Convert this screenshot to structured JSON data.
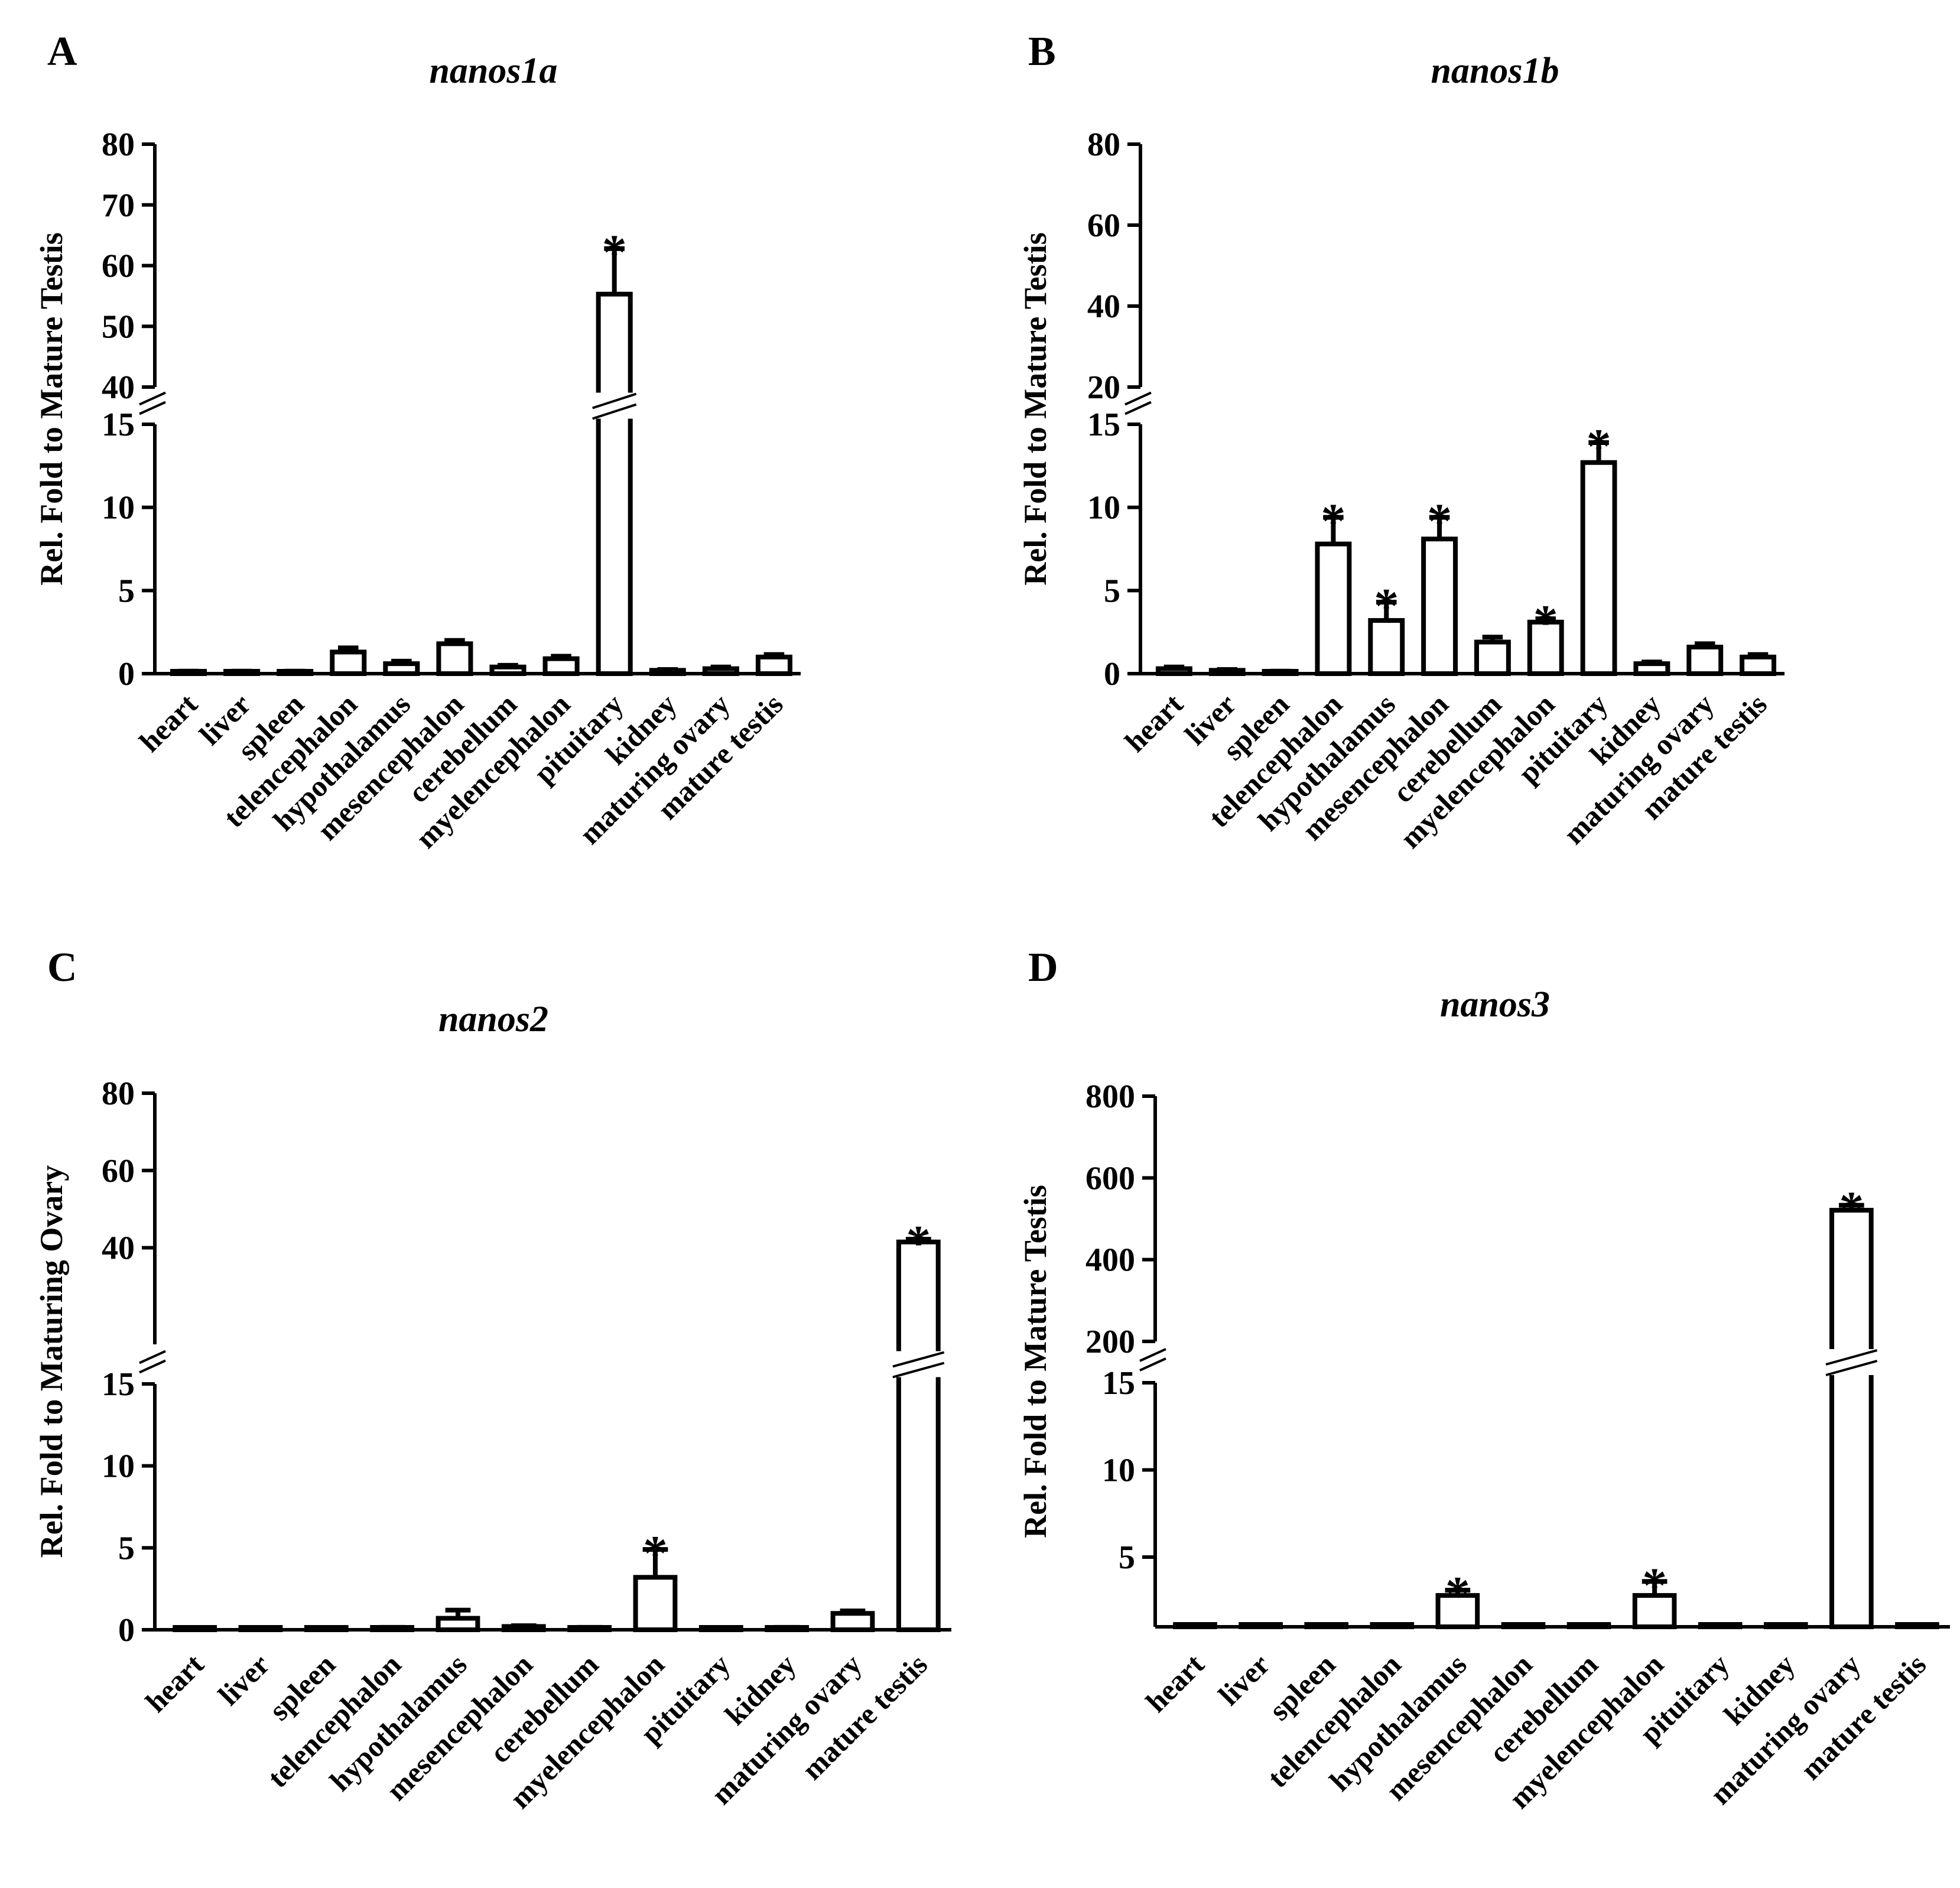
{
  "chart_data": [
    {
      "type": "bar",
      "panel": "A",
      "title": "nanos1a",
      "ylabel": "Rel. Fold to Mature Testis",
      "categories": [
        "heart",
        "liver",
        "spleen",
        "telencephalon",
        "hypothalamus",
        "mesencephalon",
        "cerebellum",
        "myelencephalon",
        "pituitary",
        "kidney",
        "maturing ovary",
        "mature testis"
      ],
      "values": [
        0.1,
        0.1,
        0.1,
        1.3,
        0.6,
        1.8,
        0.4,
        0.9,
        55.3,
        0.2,
        0.3,
        1.0
      ],
      "errors": [
        0.05,
        0.05,
        0.05,
        0.25,
        0.15,
        0.2,
        0.1,
        0.15,
        7.5,
        0.05,
        0.1,
        0.15
      ],
      "significant": [
        "pituitary"
      ],
      "marker": "*",
      "y_axis": {
        "broken": true,
        "lower": {
          "range": [
            0,
            15
          ],
          "ticks": [
            "0",
            "5",
            "10",
            "15"
          ]
        },
        "upper": {
          "range": [
            40,
            80
          ],
          "ticks": [
            "40",
            "50",
            "60",
            "70",
            "80"
          ]
        }
      }
    },
    {
      "type": "bar",
      "panel": "B",
      "title": "nanos1b",
      "ylabel": "Rel. Fold to Mature Testis",
      "categories": [
        "heart",
        "liver",
        "spleen",
        "telencephalon",
        "hypothalamus",
        "mesencephalon",
        "cerebellum",
        "myelencephalon",
        "pituitary",
        "kidney",
        "maturing ovary",
        "mature testis"
      ],
      "values": [
        0.3,
        0.2,
        0.1,
        7.8,
        3.2,
        8.1,
        1.9,
        3.1,
        12.7,
        0.6,
        1.6,
        1.0
      ],
      "errors": [
        0.1,
        0.05,
        0.05,
        1.6,
        1.1,
        1.3,
        0.3,
        0.2,
        1.2,
        0.1,
        0.2,
        0.15
      ],
      "significant": [
        "telencephalon",
        "hypothalamus",
        "mesencephalon",
        "myelencephalon",
        "pituitary"
      ],
      "marker": "*",
      "y_axis": {
        "broken": true,
        "lower": {
          "range": [
            0,
            15
          ],
          "ticks": [
            "0",
            "5",
            "10",
            "15"
          ]
        },
        "upper": {
          "range": [
            20,
            80
          ],
          "ticks": [
            "20",
            "40",
            "60",
            "80"
          ]
        }
      }
    },
    {
      "type": "bar",
      "panel": "C",
      "title": "nanos2",
      "ylabel": "Rel. Fold to Maturing Ovary",
      "categories": [
        "heart",
        "liver",
        "spleen",
        "telencephalon",
        "hypothalamus",
        "mesencephalon",
        "cerebellum",
        "myelencephalon",
        "pituitary",
        "kidney",
        "maturing ovary",
        "mature testis"
      ],
      "values": [
        0.0,
        0.0,
        0.0,
        0.1,
        0.7,
        0.2,
        0.1,
        3.2,
        0.0,
        0.1,
        1.0,
        41.5
      ],
      "errors": [
        0.0,
        0.0,
        0.0,
        0.05,
        0.5,
        0.05,
        0.05,
        1.7,
        0.0,
        0.05,
        0.15,
        0.7
      ],
      "significant": [
        "myelencephalon",
        "mature testis"
      ],
      "marker": "*",
      "y_axis": {
        "broken": true,
        "lower": {
          "range": [
            0,
            15
          ],
          "ticks": [
            "0",
            "5",
            "10",
            "15"
          ]
        },
        "upper": {
          "range": [
            15,
            80
          ],
          "ticks": [
            "40",
            "60",
            "80"
          ]
        }
      }
    },
    {
      "type": "bar",
      "panel": "D",
      "title": "nanos3",
      "ylabel": "Rel. Fold to Mature Testis",
      "categories": [
        "heart",
        "liver",
        "spleen",
        "telencephalon",
        "hypothalamus",
        "mesencephalon",
        "cerebellum",
        "myelencephalon",
        "pituitary",
        "kidney",
        "maturing ovary",
        "mature testis"
      ],
      "values": [
        1.0,
        1.0,
        1.0,
        1.0,
        2.8,
        1.0,
        1.0,
        2.8,
        1.0,
        1.0,
        521,
        1.0
      ],
      "errors": [
        0.0,
        0.0,
        0.0,
        0.0,
        0.3,
        0.0,
        0.0,
        0.8,
        0.0,
        0.0,
        12,
        0.0
      ],
      "significant": [
        "hypothalamus",
        "myelencephalon",
        "maturing ovary"
      ],
      "marker": "*",
      "y_axis": {
        "broken": true,
        "lower": {
          "range": [
            1,
            15
          ],
          "ticks": [
            "5",
            "10",
            "15"
          ]
        },
        "upper": {
          "range": [
            200,
            800
          ],
          "ticks": [
            "200",
            "400",
            "600",
            "800"
          ]
        }
      }
    }
  ]
}
